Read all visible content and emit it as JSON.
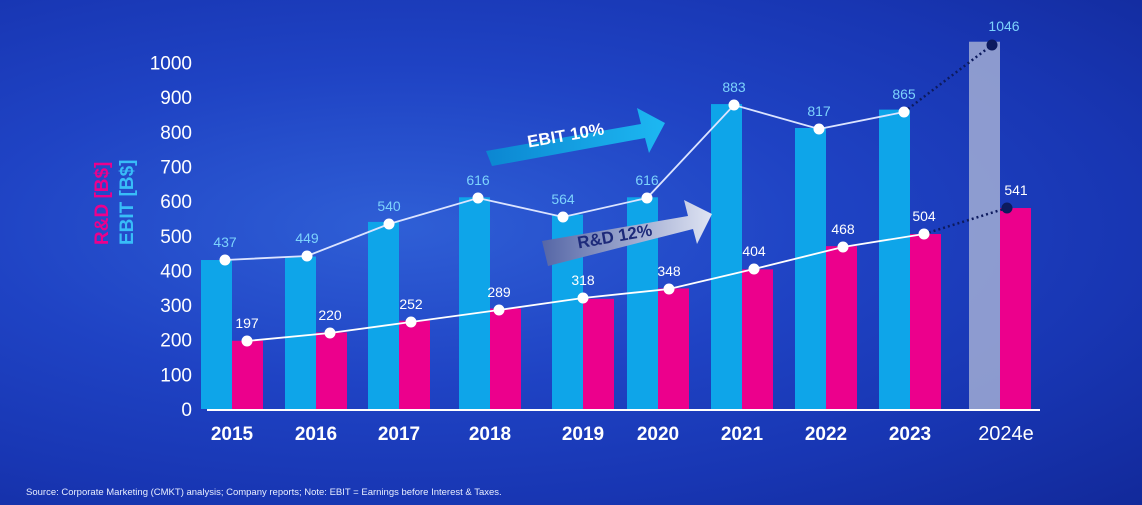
{
  "source_note": "Source: Corporate Marketing (CMKT) analysis; Company reports; Note: EBIT = Earnings before Interest & Taxes.",
  "annotations": {
    "ebit_arrow": "EBIT 10%",
    "rd_arrow": "R&D 12%"
  },
  "colors": {
    "ebit": "#0ea5e9",
    "rd": "#ec008c",
    "estimate_bar": "#aab4d6",
    "ebit_label": "#7dd3fc"
  },
  "chart_data": {
    "type": "bar",
    "categories": [
      "2015",
      "2016",
      "2017",
      "2018",
      "2019",
      "2020",
      "2021",
      "2022",
      "2023",
      "2024e"
    ],
    "ylim": [
      0,
      1000
    ],
    "yticks": [
      0,
      100,
      200,
      300,
      400,
      500,
      600,
      700,
      800,
      900,
      1000
    ],
    "ylabel_rd": "R&D [B$]",
    "ylabel_ebit": "EBIT [B$]",
    "series": [
      {
        "name": "EBIT [B$]",
        "values": [
          437,
          449,
          540,
          616,
          564,
          616,
          883,
          817,
          865,
          1046
        ]
      },
      {
        "name": "R&D [B$]",
        "values": [
          197,
          220,
          252,
          289,
          318,
          348,
          404,
          468,
          504,
          541
        ]
      }
    ],
    "estimate_category": "2024e",
    "bars_drawn": {
      "ebit": [
        430,
        440,
        540,
        611,
        561,
        611,
        880,
        811,
        864,
        1060
      ],
      "rd": [
        197,
        221,
        255,
        290,
        318,
        348,
        403,
        470,
        505,
        580
      ]
    }
  }
}
